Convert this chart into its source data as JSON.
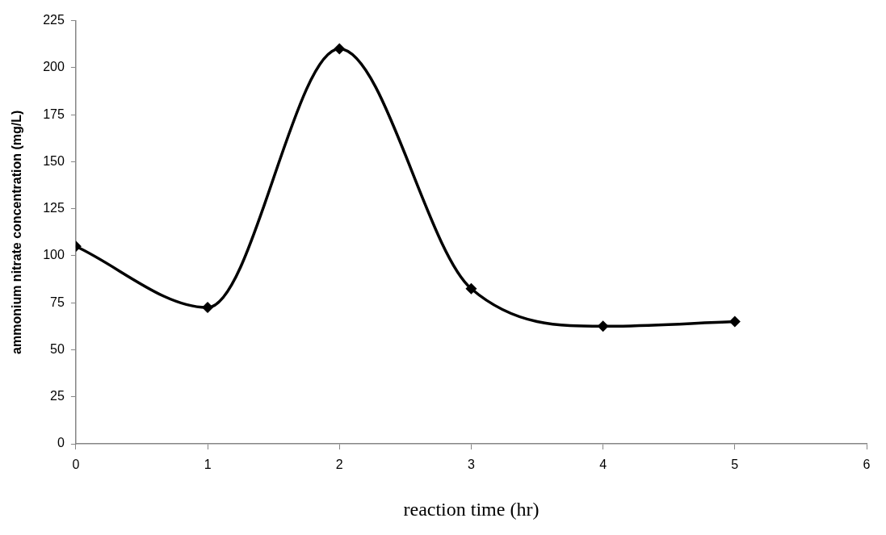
{
  "chart_data": {
    "type": "line",
    "xlabel": "reaction time (hr)",
    "ylabel": "ammonium nitrate concentration (mg/L)",
    "x": [
      0,
      1,
      2,
      3,
      4,
      5
    ],
    "series": [
      {
        "color": "#000000",
        "values": [
          105,
          72.5,
          210,
          82.5,
          62.5,
          65
        ]
      }
    ],
    "xlim": [
      0,
      6
    ],
    "xticks": [
      0,
      1,
      2,
      3,
      4,
      5,
      6
    ],
    "ylim": [
      0,
      225
    ],
    "yticks": [
      0,
      25,
      50,
      75,
      100,
      125,
      150,
      175,
      200,
      225
    ],
    "grid": false,
    "legend": false,
    "marker": "diamond",
    "line_style": "solid"
  }
}
